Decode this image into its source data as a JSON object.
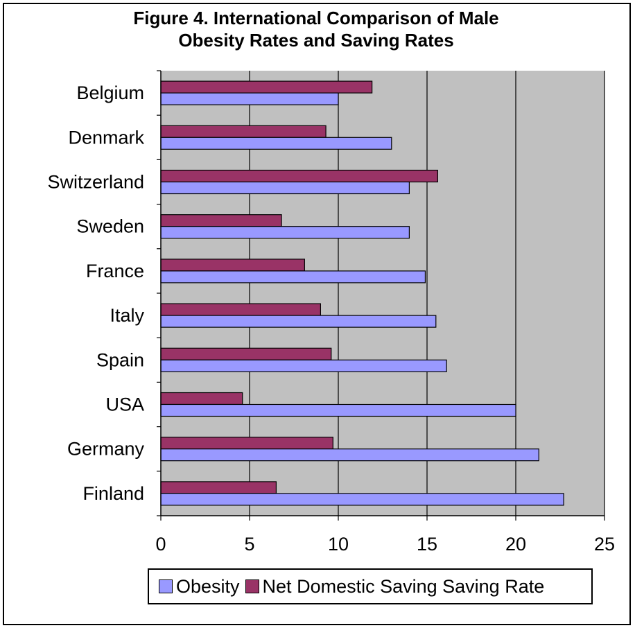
{
  "chart_data": {
    "type": "bar",
    "orientation": "horizontal",
    "title": [
      "Figure 4. International Comparison of Male",
      "Obesity Rates and Saving Rates"
    ],
    "categories": [
      "Belgium",
      "Denmark",
      "Switzerland",
      "Sweden",
      "France",
      "Italy",
      "Spain",
      "USA",
      "Germany",
      "Finland"
    ],
    "series": [
      {
        "name": "Obesity",
        "color": "#9999ff",
        "values": [
          10.0,
          13.0,
          14.0,
          14.0,
          14.9,
          15.5,
          16.1,
          20.0,
          21.3,
          22.7
        ]
      },
      {
        "name": "Net Domestic Saving Saving Rate",
        "color": "#993366",
        "values": [
          11.9,
          9.3,
          15.6,
          6.8,
          8.1,
          9.0,
          9.6,
          4.6,
          9.7,
          6.5
        ]
      }
    ],
    "xlim": [
      0,
      25
    ],
    "xticks": [
      0,
      5,
      10,
      15,
      20,
      25
    ],
    "grid": true,
    "plot_background": "#c0c0c0",
    "legend_position": "bottom"
  }
}
